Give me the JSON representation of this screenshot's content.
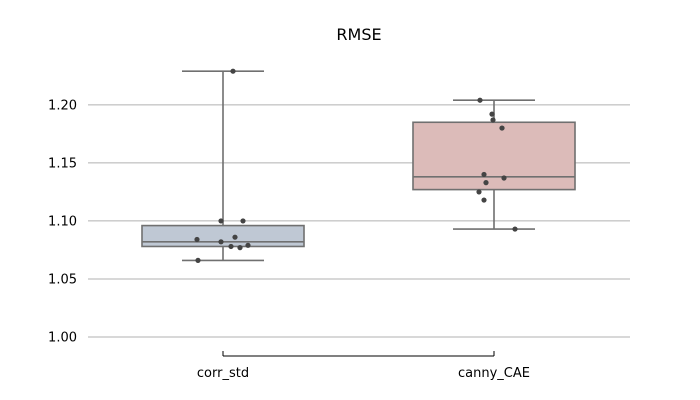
{
  "chart_data": {
    "type": "box",
    "title": "RMSE",
    "xlabel": "",
    "ylabel": "",
    "categories": [
      "corr_std",
      "canny_CAE"
    ],
    "ylim": [
      0.985,
      1.245
    ],
    "yticks": [
      "1.00",
      "1.05",
      "1.10",
      "1.15",
      "1.20"
    ],
    "grid": "horizontal",
    "boxes": [
      {
        "category": "corr_std",
        "color": "#bfc8d4",
        "whisker_low": 1.066,
        "q1": 1.078,
        "median": 1.082,
        "q3": 1.096,
        "whisker_high": 1.229,
        "points": [
          1.229,
          1.1,
          1.1,
          1.084,
          1.086,
          1.082,
          1.078,
          1.077,
          1.079,
          1.066
        ]
      },
      {
        "category": "canny_CAE",
        "color": "#dcbbb9",
        "whisker_low": 1.093,
        "q1": 1.127,
        "median": 1.138,
        "q3": 1.185,
        "whisker_high": 1.204,
        "points": [
          1.204,
          1.192,
          1.187,
          1.18,
          1.14,
          1.137,
          1.133,
          1.125,
          1.118,
          1.093
        ]
      }
    ]
  }
}
